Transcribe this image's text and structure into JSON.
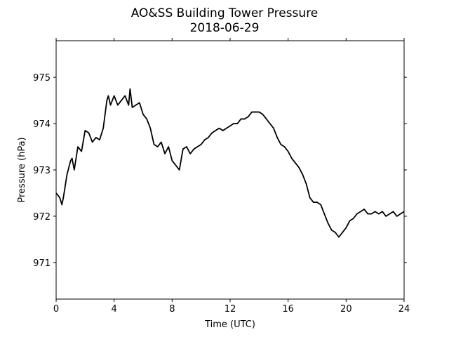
{
  "chart_data": {
    "type": "line",
    "title": "AO&SS Building Tower Pressure",
    "subtitle": "2018-06-29",
    "xlabel": "Time (UTC)",
    "ylabel": "Pressure (hPa)",
    "color": "#000000",
    "x": [
      0,
      0.25,
      0.4,
      0.5,
      0.75,
      1.0,
      1.1,
      1.25,
      1.5,
      1.75,
      2.0,
      2.25,
      2.5,
      2.75,
      3.0,
      3.25,
      3.5,
      3.6,
      3.75,
      4.0,
      4.25,
      4.5,
      4.75,
      5.0,
      5.1,
      5.25,
      5.5,
      5.75,
      6.0,
      6.25,
      6.5,
      6.75,
      7.0,
      7.25,
      7.5,
      7.75,
      8.0,
      8.25,
      8.5,
      8.75,
      9.0,
      9.25,
      9.5,
      9.75,
      10,
      10.25,
      10.5,
      10.75,
      11,
      11.25,
      11.5,
      11.75,
      12,
      12.25,
      12.5,
      12.75,
      13,
      13.25,
      13.5,
      13.75,
      14,
      14.25,
      14.5,
      14.75,
      15,
      15.25,
      15.5,
      15.75,
      16,
      16.25,
      16.5,
      16.75,
      17,
      17.25,
      17.5,
      17.75,
      18,
      18.25,
      18.5,
      18.75,
      19,
      19.25,
      19.5,
      19.75,
      20,
      20.25,
      20.5,
      20.75,
      21,
      21.25,
      21.5,
      21.75,
      22,
      22.25,
      22.5,
      22.75,
      23,
      23.25,
      23.5,
      23.75,
      24
    ],
    "values": [
      972.5,
      972.4,
      972.25,
      972.4,
      972.9,
      973.2,
      973.25,
      973.0,
      973.5,
      973.4,
      973.85,
      973.8,
      973.6,
      973.7,
      973.65,
      973.9,
      974.5,
      974.6,
      974.4,
      974.6,
      974.4,
      974.5,
      974.6,
      974.4,
      974.75,
      974.35,
      974.4,
      974.45,
      974.2,
      974.1,
      973.9,
      973.55,
      973.5,
      973.6,
      973.35,
      973.5,
      973.2,
      973.1,
      973.0,
      973.45,
      973.5,
      973.35,
      973.45,
      973.5,
      973.55,
      973.65,
      973.7,
      973.8,
      973.85,
      973.9,
      973.85,
      973.9,
      973.95,
      974.0,
      974.0,
      974.1,
      974.1,
      974.15,
      974.25,
      974.25,
      974.25,
      974.2,
      974.1,
      974.0,
      973.9,
      973.7,
      973.55,
      973.5,
      973.4,
      973.25,
      973.15,
      973.05,
      972.9,
      972.7,
      972.4,
      972.3,
      972.3,
      972.25,
      972.05,
      971.85,
      971.7,
      971.65,
      971.55,
      971.65,
      971.75,
      971.9,
      971.95,
      972.05,
      972.1,
      972.15,
      972.05,
      972.05,
      972.1,
      972.05,
      972.1,
      972.0,
      972.05,
      972.1,
      972.0,
      972.05,
      972.1
    ],
    "xlim": [
      0,
      24
    ],
    "xticks": [
      0,
      4,
      8,
      12,
      16,
      20,
      24
    ],
    "ylim": [
      970.21,
      975.79
    ],
    "yticks": [
      971,
      972,
      973,
      974,
      975
    ]
  }
}
